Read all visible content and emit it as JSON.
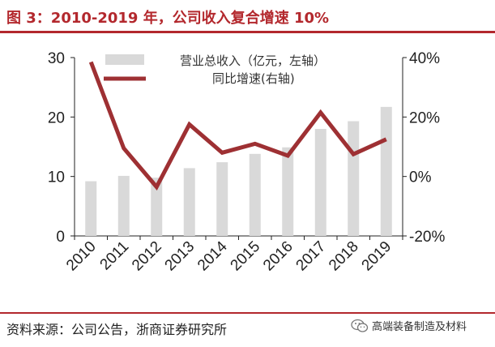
{
  "title": "图 3：2010-2019 年，公司收入复合增速 10%",
  "source": "资料来源：公司公告，浙商证券研究所",
  "brand": {
    "name": "高端装备制造及材料",
    "icon": "wechat-icon"
  },
  "colors": {
    "title": "#b3282d",
    "bar": "#d9d9d9",
    "line": "#9e3033",
    "axis": "#222222"
  },
  "chart_data": {
    "type": "bar+line",
    "categories": [
      "2010",
      "2011",
      "2012",
      "2013",
      "2014",
      "2015",
      "2016",
      "2017",
      "2018",
      "2019"
    ],
    "series": [
      {
        "name": "营业总收入（亿元，左轴）",
        "type": "bar",
        "axis": "left",
        "values": [
          9.2,
          10.1,
          9.8,
          11.4,
          12.4,
          13.8,
          14.9,
          18.0,
          19.3,
          21.7
        ]
      },
      {
        "name": "同比增速(右轴)",
        "type": "line",
        "axis": "right",
        "values": [
          38.5,
          9.5,
          -3.5,
          17.5,
          8.0,
          11.0,
          7.0,
          21.5,
          7.5,
          12.5
        ]
      }
    ],
    "y_left": {
      "range": [
        0,
        30
      ],
      "ticks": [
        "0",
        "10",
        "20",
        "30"
      ]
    },
    "y_right": {
      "range": [
        -20,
        40
      ],
      "ticks": [
        "-20%",
        "0%",
        "20%",
        "40%"
      ]
    },
    "grid": false,
    "legend_position": "top-center"
  }
}
